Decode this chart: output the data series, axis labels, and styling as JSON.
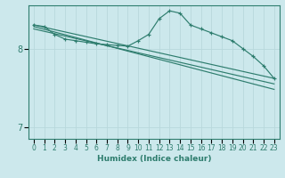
{
  "xlabel": "Humidex (Indice chaleur)",
  "ylabel": "",
  "background_color": "#cce8ec",
  "line_color": "#2e7d6e",
  "grid_color": "#b8d8dc",
  "xlim": [
    -0.5,
    23.5
  ],
  "ylim": [
    6.85,
    8.55
  ],
  "yticks": [
    7,
    8
  ],
  "xticks": [
    0,
    1,
    2,
    3,
    4,
    5,
    6,
    7,
    8,
    9,
    10,
    11,
    12,
    13,
    14,
    15,
    16,
    17,
    18,
    19,
    20,
    21,
    22,
    23
  ],
  "series_main": {
    "x": [
      0,
      1,
      2,
      3,
      4,
      5,
      6,
      7,
      8,
      9,
      10,
      11,
      12,
      13,
      14,
      15,
      16,
      17,
      18,
      19,
      20,
      21,
      22,
      23
    ],
    "y": [
      8.3,
      8.28,
      8.18,
      8.12,
      8.1,
      8.08,
      8.06,
      8.05,
      8.04,
      8.03,
      8.1,
      8.18,
      8.38,
      8.48,
      8.45,
      8.3,
      8.25,
      8.2,
      8.15,
      8.1,
      8.0,
      7.9,
      7.78,
      7.62
    ]
  },
  "trend_lines": [
    {
      "x": [
        0,
        23
      ],
      "y": [
        8.3,
        7.62
      ]
    },
    {
      "x": [
        0,
        23
      ],
      "y": [
        8.25,
        7.55
      ]
    },
    {
      "x": [
        0,
        23
      ],
      "y": [
        8.28,
        7.48
      ]
    }
  ]
}
